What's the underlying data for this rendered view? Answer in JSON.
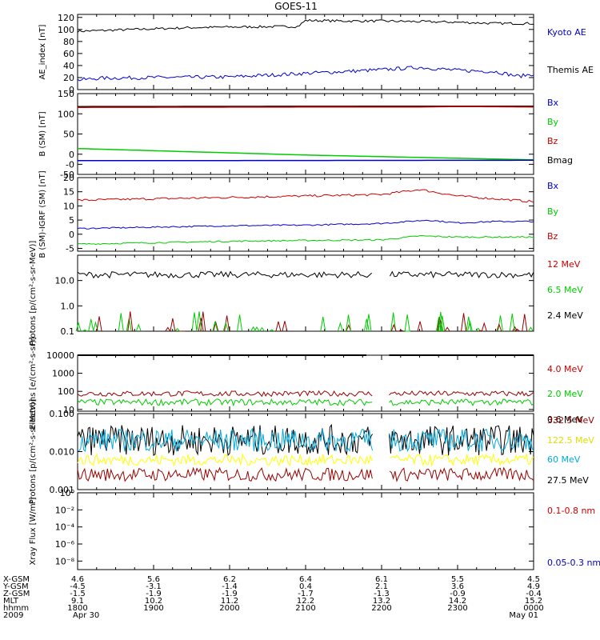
{
  "title": "GOES-11",
  "chart_data": [
    {
      "type": "line",
      "ylabel": "AE_index [nT]",
      "ylim": [
        0,
        125
      ],
      "yticks": [
        "0",
        "20",
        "40",
        "60",
        "80",
        "100",
        "120"
      ],
      "series": [
        {
          "name": "Kyoto AE",
          "color": "#0000cc",
          "level": 102
        },
        {
          "name": "Themis AE",
          "color": "#000000",
          "level": 22
        }
      ],
      "profiles": {
        "kyoto_ae": {
          "x_hours": [
            0,
            0.5,
            1,
            1.5,
            2,
            2.9,
            3.0,
            3.5,
            4,
            4.5,
            5,
            5.5,
            6
          ],
          "y": [
            97,
            99,
            101,
            103,
            104,
            105,
            115,
            114,
            114,
            113,
            112,
            110,
            110
          ]
        },
        "themis_ae": {
          "x_hours": [
            0,
            0.3,
            1,
            2,
            2.5,
            3,
            3.5,
            4,
            4.5,
            5,
            5.5,
            5.8,
            6
          ],
          "y": [
            16,
            19,
            20,
            21,
            24,
            27,
            30,
            33,
            37,
            32,
            30,
            22,
            26
          ]
        }
      }
    },
    {
      "type": "line",
      "ylabel": "B (SM) [nT]",
      "ylim": [
        -50,
        150
      ],
      "yticks": [
        "-50",
        "-0",
        "0",
        "50",
        "100",
        "150"
      ],
      "series": [
        {
          "name": "Bx",
          "color": "#0000cc"
        },
        {
          "name": "By",
          "color": "#00cc00"
        },
        {
          "name": "Bz",
          "color": "#cc0000"
        },
        {
          "name": "Bmag",
          "color": "#000000"
        }
      ],
      "profiles": {
        "bx": {
          "x_hours": [
            0,
            6
          ],
          "y": [
            -16,
            -15
          ]
        },
        "by": {
          "x_hours": [
            0,
            3,
            6
          ],
          "y": [
            14,
            -2,
            -14
          ]
        },
        "bz": {
          "x_hours": [
            0,
            4.5,
            5,
            6
          ],
          "y": [
            116,
            117,
            118,
            117
          ]
        },
        "bmag": {
          "x_hours": [
            0,
            6
          ],
          "y": [
            118,
            119
          ]
        }
      }
    },
    {
      "type": "line",
      "ylabel": "B (SM)-IGRF (SM) [nT]",
      "ylim": [
        -6,
        20
      ],
      "yticks": [
        "-5",
        "0",
        "5",
        "10",
        "15",
        "20"
      ],
      "series": [
        {
          "name": "Bx",
          "color": "#0000cc"
        },
        {
          "name": "By",
          "color": "#00cc00"
        },
        {
          "name": "Bz",
          "color": "#cc0000"
        }
      ],
      "profiles": {
        "bx": {
          "x_hours": [
            0,
            1,
            2,
            3,
            4,
            4.6,
            5,
            5.5,
            6
          ],
          "y": [
            2,
            2.5,
            3,
            3.2,
            3.8,
            5,
            4,
            4.5,
            4.5
          ]
        },
        "by": {
          "x_hours": [
            0,
            1,
            2,
            3,
            4,
            4.5,
            5,
            6
          ],
          "y": [
            -3.5,
            -3,
            -2.5,
            -2.2,
            -2,
            -0.6,
            -1,
            -1
          ]
        },
        "bz": {
          "x_hours": [
            0,
            1,
            2,
            3,
            4,
            4.5,
            5,
            5.5,
            6
          ],
          "y": [
            12,
            12.5,
            13,
            13.5,
            14,
            15.8,
            13.5,
            12.5,
            11.5
          ]
        }
      }
    },
    {
      "type": "line",
      "ylabel": "Protons [p/(cm²-s-sr-MeV)]",
      "yscale": "log",
      "ylim": [
        0.1,
        100
      ],
      "yticks": [
        "0.1",
        "1.0",
        "10.0"
      ],
      "series": [
        {
          "name": "12 MeV",
          "color": "#cc0000"
        },
        {
          "name": "6.5 MeV",
          "color": "#00cc00"
        },
        {
          "name": "2.4 MeV",
          "color": "#000000",
          "level": 17
        }
      ],
      "data_gap_hours": [
        3.9,
        4.1
      ]
    },
    {
      "type": "line",
      "ylabel": "Electrons [e/(cm²-s-sr)]",
      "yscale": "log",
      "ylim": [
        8,
        10000
      ],
      "yticks": [
        "10",
        "100",
        "1000",
        "10000"
      ],
      "series": [
        {
          "name": "4.0 MeV",
          "color": "#cc0000",
          "level": 75
        },
        {
          "name": "2.0 MeV",
          "color": "#00cc00",
          "level": 25
        },
        {
          "name": "0.6 MeV",
          "color": "#000000",
          "level": 10000
        }
      ],
      "data_gap_hours": [
        3.9,
        4.1
      ]
    },
    {
      "type": "line",
      "ylabel": "Protons [p/(cm²-s-sr-MeV)]",
      "yscale": "log",
      "ylim": [
        0.001,
        0.1
      ],
      "yticks": [
        "0.001",
        "0.010",
        "0.100"
      ],
      "series": [
        {
          "name": "332.5 MeV",
          "color": "#990000",
          "level": 0.0025
        },
        {
          "name": "122.5 MeV",
          "color": "#ffff00",
          "level": 0.006
        },
        {
          "name": "60 MeV",
          "color": "#00aadd",
          "level": 0.02
        },
        {
          "name": "27.5 MeV",
          "color": "#000000",
          "level": 0.02
        }
      ],
      "data_gap_hours": [
        3.9,
        4.1
      ]
    },
    {
      "type": "line",
      "ylabel": "Xray Flux [W/m²]",
      "yscale": "log",
      "ylim": [
        1e-09,
        1
      ],
      "yticks": [
        "10⁻⁸",
        "10⁻⁶",
        "10⁻⁴",
        "10⁻²",
        "10⁰"
      ],
      "series": [
        {
          "name": "0.1-0.8 nm",
          "color": "#cc0000"
        },
        {
          "name": "0.05-0.3 nm",
          "color": "#0000cc"
        }
      ]
    }
  ],
  "ephemeris": {
    "row_labels": [
      "X-GSM",
      "Y-GSM",
      "Z-GSM",
      "MLT",
      "hhmm",
      "2009"
    ],
    "columns": [
      {
        "values": [
          "4.6",
          "-4.5",
          "-1.5",
          "9.1",
          "1800",
          "Apr 30"
        ]
      },
      {
        "values": [
          "5.6",
          "-3.1",
          "-1.9",
          "10.2",
          "1900",
          ""
        ]
      },
      {
        "values": [
          "6.2",
          "-1.4",
          "-1.9",
          "11.2",
          "2000",
          ""
        ]
      },
      {
        "values": [
          "6.4",
          "0.4",
          "-1.7",
          "12.2",
          "2100",
          ""
        ]
      },
      {
        "values": [
          "6.1",
          "2.1",
          "-1.3",
          "13.2",
          "2200",
          ""
        ]
      },
      {
        "values": [
          "5.5",
          "3.6",
          "-0.9",
          "14.2",
          "2300",
          ""
        ]
      },
      {
        "values": [
          "4.5",
          "4.9",
          "-0.4",
          "15.2",
          "0000",
          "May 01"
        ]
      }
    ]
  }
}
